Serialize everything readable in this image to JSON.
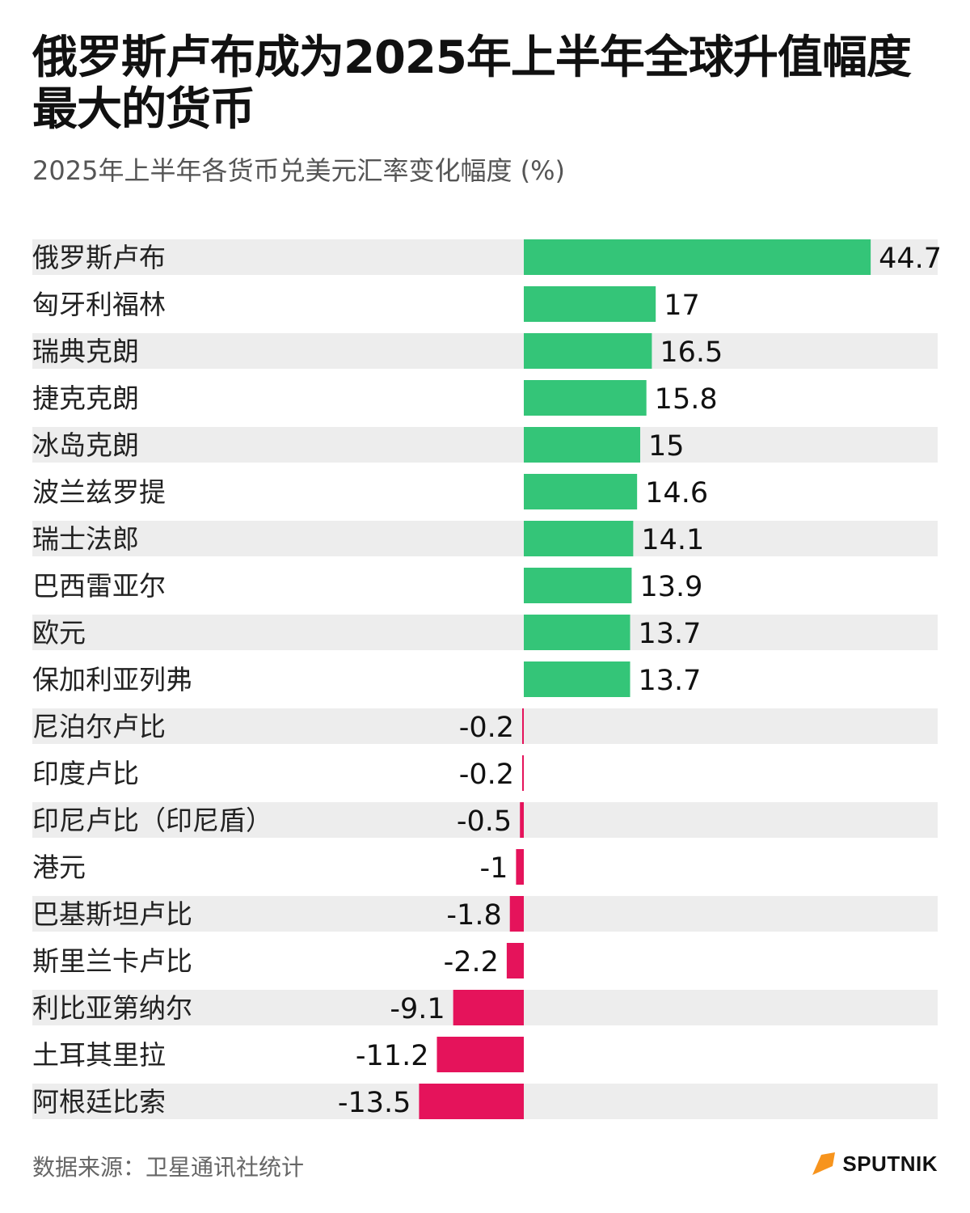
{
  "header": {
    "title": "俄罗斯卢布成为2025年上半年全球升值幅度最大的货币",
    "subtitle": "2025年上半年各货币兑美元汇率变化幅度 (%)"
  },
  "footer": {
    "source": "数据来源：卫星通讯社统计",
    "logo_text": "SPUTNIK"
  },
  "colors": {
    "positive": "#34c578",
    "negative": "#e5135b",
    "row_band": "#ededed",
    "logo_accent": "#f7941d"
  },
  "chart_data": {
    "type": "bar",
    "orientation": "horizontal",
    "title": "俄罗斯卢布成为2025年上半年全球升值幅度最大的货币",
    "subtitle": "2025年上半年各货币兑美元汇率变化幅度 (%)",
    "categories": [
      "俄罗斯卢布",
      "匈牙利福林",
      "瑞典克朗",
      "捷克克朗",
      "冰岛克朗",
      "波兰兹罗提",
      "瑞士法郎",
      "巴西雷亚尔",
      "欧元",
      "保加利亚列弗",
      "尼泊尔卢比",
      "印度卢比",
      "印尼卢比（印尼盾）",
      "港元",
      "巴基斯坦卢比",
      "斯里兰卡卢比",
      "利比亚第纳尔",
      "土耳其里拉",
      "阿根廷比索"
    ],
    "values": [
      44.7,
      17,
      16.5,
      15.8,
      15,
      14.6,
      14.1,
      13.9,
      13.7,
      13.7,
      -0.2,
      -0.2,
      -0.5,
      -1,
      -1.8,
      -2.2,
      -9.1,
      -11.2,
      -13.5
    ],
    "value_labels": [
      "44.7",
      "17",
      "16.5",
      "15.8",
      "15",
      "14.6",
      "14.1",
      "13.9",
      "13.7",
      "13.7",
      "-0.2",
      "-0.2",
      "-0.5",
      "-1",
      "-1.8",
      "-2.2",
      "-9.1",
      "-11.2",
      "-13.5"
    ],
    "xlim": [
      -13.5,
      44.7
    ],
    "grid": false,
    "legend": "none"
  }
}
